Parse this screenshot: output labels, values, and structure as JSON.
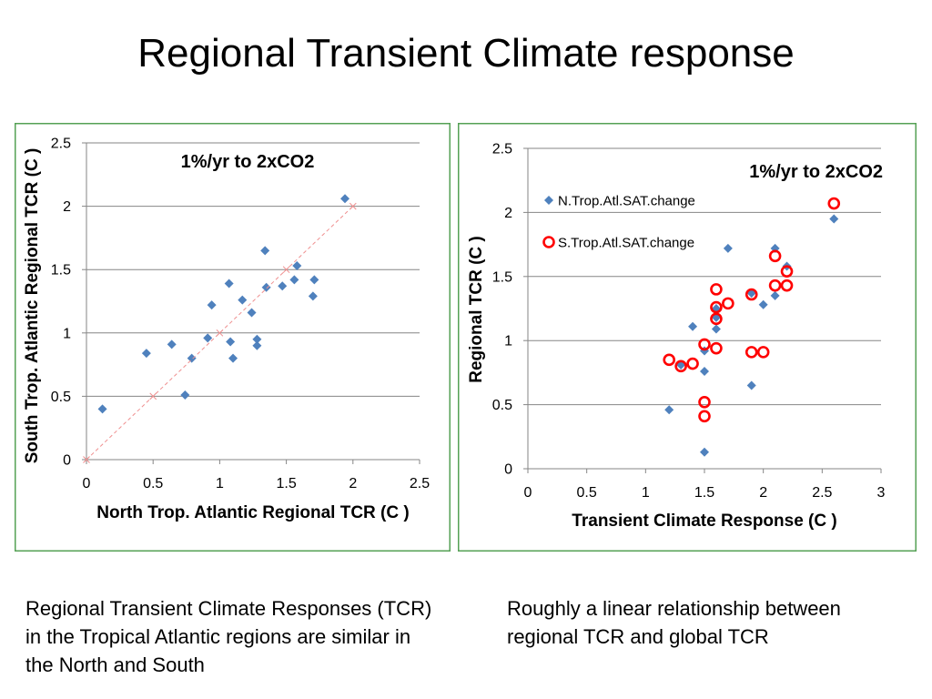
{
  "slide": {
    "title": "Regional Transient Climate response",
    "caption_left": [
      "Regional Transient Climate Responses (TCR)",
      "in the Tropical Atlantic regions are similar in",
      "the North and South"
    ],
    "caption_right": [
      "Roughly a linear relationship between",
      "regional TCR and global TCR"
    ]
  },
  "colors": {
    "frame": "#55a155",
    "grid": "#868686"
  },
  "chart_data": [
    {
      "type": "scatter",
      "annotation": "1%/yr to 2xCO2",
      "xlabel": "North Trop. Atlantic Regional TCR (C )",
      "ylabel": "South Trop. Atlantic Regional TCR (C )",
      "xlim": [
        0,
        2.5
      ],
      "ylim": [
        0,
        2.5
      ],
      "xticks": [
        0,
        0.5,
        1,
        1.5,
        2,
        2.5
      ],
      "yticks": [
        0,
        0.5,
        1,
        1.5,
        2,
        2.5
      ],
      "grid": "horizontal",
      "legend": "none",
      "series": [
        {
          "marker": "diamond",
          "color": "#4f81bd",
          "points": [
            [
              0.12,
              0.4
            ],
            [
              0.45,
              0.84
            ],
            [
              0.64,
              0.91
            ],
            [
              0.74,
              0.51
            ],
            [
              0.79,
              0.8
            ],
            [
              0.91,
              0.96
            ],
            [
              0.94,
              1.22
            ],
            [
              1.07,
              1.39
            ],
            [
              1.08,
              0.93
            ],
            [
              1.1,
              0.8
            ],
            [
              1.17,
              1.26
            ],
            [
              1.24,
              1.16
            ],
            [
              1.28,
              0.95
            ],
            [
              1.28,
              0.9
            ],
            [
              1.34,
              1.65
            ],
            [
              1.35,
              1.36
            ],
            [
              1.47,
              1.37
            ],
            [
              1.56,
              1.42
            ],
            [
              1.58,
              1.53
            ],
            [
              1.71,
              1.42
            ],
            [
              1.7,
              1.29
            ],
            [
              1.94,
              2.06
            ]
          ]
        },
        {
          "marker": "x",
          "line_style": "dashed",
          "color": "#ef8f8f",
          "points": [
            [
              0,
              0
            ],
            [
              0.5,
              0.5
            ],
            [
              1,
              1
            ],
            [
              1.5,
              1.5
            ],
            [
              2,
              2
            ]
          ]
        }
      ]
    },
    {
      "type": "scatter",
      "annotation": "1%/yr to 2xCO2",
      "xlabel": "Transient Climate Response (C )",
      "ylabel": "Regional TCR (C )",
      "xlim": [
        0,
        3
      ],
      "ylim": [
        0,
        2.5
      ],
      "xticks": [
        0,
        0.5,
        1,
        1.5,
        2,
        2.5,
        3
      ],
      "yticks": [
        0,
        0.5,
        1,
        1.5,
        2,
        2.5
      ],
      "grid": "horizontal",
      "legend": "top-left",
      "series": [
        {
          "name": "N.Trop.Atl.SAT.change",
          "marker": "diamond",
          "color": "#4f81bd",
          "points": [
            [
              1.2,
              0.46
            ],
            [
              1.3,
              0.81
            ],
            [
              1.4,
              1.11
            ],
            [
              1.5,
              0.13
            ],
            [
              1.5,
              0.76
            ],
            [
              1.5,
              0.92
            ],
            [
              1.6,
              1.25
            ],
            [
              1.6,
              1.18
            ],
            [
              1.6,
              1.09
            ],
            [
              1.7,
              1.72
            ],
            [
              1.9,
              0.65
            ],
            [
              1.9,
              1.37
            ],
            [
              2.0,
              1.28
            ],
            [
              2.1,
              1.35
            ],
            [
              2.1,
              1.72
            ],
            [
              2.2,
              1.58
            ],
            [
              2.6,
              1.95
            ]
          ]
        },
        {
          "name": "S.Trop.Atl.SAT.change",
          "marker": "circle",
          "color": "#ff0000",
          "points": [
            [
              1.2,
              0.85
            ],
            [
              1.3,
              0.8
            ],
            [
              1.4,
              0.82
            ],
            [
              1.5,
              0.97
            ],
            [
              1.5,
              0.52
            ],
            [
              1.5,
              0.41
            ],
            [
              1.6,
              1.4
            ],
            [
              1.6,
              1.26
            ],
            [
              1.6,
              1.17
            ],
            [
              1.6,
              0.94
            ],
            [
              1.7,
              1.29
            ],
            [
              1.9,
              1.36
            ],
            [
              1.9,
              0.91
            ],
            [
              2.0,
              0.91
            ],
            [
              2.1,
              1.66
            ],
            [
              2.1,
              1.43
            ],
            [
              2.2,
              1.54
            ],
            [
              2.2,
              1.43
            ],
            [
              2.6,
              2.07
            ]
          ]
        }
      ]
    }
  ]
}
